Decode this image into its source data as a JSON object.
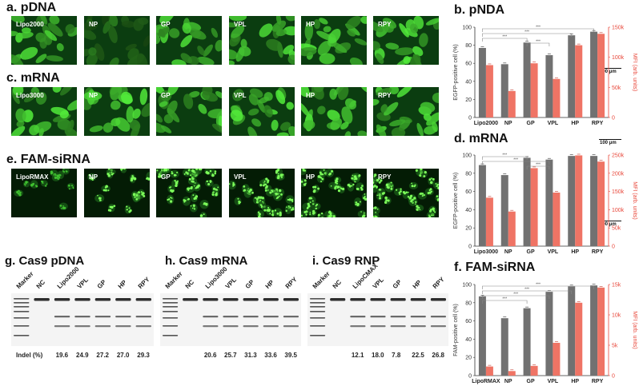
{
  "panels": {
    "a": {
      "title": "a. pDNA",
      "labels": [
        "Lipo2000",
        "NP",
        "GP",
        "VPL",
        "HP",
        "RPY"
      ]
    },
    "c": {
      "title": "c. mRNA",
      "labels": [
        "Lipo3000",
        "NP",
        "GP",
        "VPL",
        "HP",
        "RPY"
      ]
    },
    "e": {
      "title": "e. FAM-siRNA",
      "labels": [
        "LipoRMAX",
        "NP",
        "GP",
        "VPL",
        "HP",
        "RPY"
      ]
    },
    "scale_label": "100 μm"
  },
  "colors": {
    "bar_gray": "#717171",
    "bar_red": "#ef7465",
    "axis_red": "#e8473a",
    "sig": "#888888"
  },
  "chart_data": [
    {
      "type": "bar",
      "title": "b. pNDA",
      "categories": [
        "Lipo2000",
        "NP",
        "GP",
        "VPL",
        "HP",
        "RPY"
      ],
      "ylabel": "EGFP-positive cell (%)",
      "y2label": "MFI (arb. units)",
      "ylim": [
        0,
        100
      ],
      "y2lim": [
        0,
        150000
      ],
      "yticks": [
        "0",
        "20",
        "40",
        "60",
        "80",
        "100"
      ],
      "y2ticks": [
        "0",
        "50k",
        "100k",
        "150k"
      ],
      "series": [
        {
          "axis": "left",
          "values": [
            77,
            59,
            83,
            69,
            91,
            95
          ]
        },
        {
          "axis": "right",
          "values": [
            87000,
            44000,
            90000,
            64000,
            120000,
            139000
          ]
        }
      ],
      "significance": "***"
    },
    {
      "type": "bar",
      "title": "d. mRNA",
      "categories": [
        "Lipo3000",
        "NP",
        "GP",
        "VPL",
        "HP",
        "RPY"
      ],
      "ylabel": "EGFP-positive cell (%)",
      "y2label": "MFI (arb. units)",
      "ylim": [
        0,
        100
      ],
      "y2lim": [
        0,
        250000
      ],
      "yticks": [
        "0",
        "20",
        "40",
        "60",
        "80",
        "100"
      ],
      "y2ticks": [
        "0",
        "50k",
        "100k",
        "150k",
        "200k",
        "250k"
      ],
      "series": [
        {
          "axis": "left",
          "values": [
            89,
            78,
            97,
            95,
            99,
            99
          ]
        },
        {
          "axis": "right",
          "values": [
            133000,
            95000,
            214000,
            147000,
            249000,
            232000
          ]
        }
      ],
      "significance": "***"
    },
    {
      "type": "bar",
      "title": "f. FAM-siRNA",
      "categories": [
        "LipoRMAX",
        "NP",
        "GP",
        "VPL",
        "HP",
        "RPY"
      ],
      "ylabel": "FAM-positive cell (%)",
      "y2label": "MFI (arb. units)",
      "ylim": [
        0,
        100
      ],
      "y2lim": [
        0,
        15000
      ],
      "yticks": [
        "0",
        "20",
        "40",
        "60",
        "80",
        "100"
      ],
      "y2ticks": [
        "0",
        "5k",
        "10k",
        "15k"
      ],
      "series": [
        {
          "axis": "left",
          "values": [
            87,
            63,
            74,
            92,
            98,
            99
          ]
        },
        {
          "axis": "right",
          "values": [
            1500,
            750,
            1600,
            5400,
            12000,
            14500
          ]
        }
      ],
      "significance": "***"
    }
  ],
  "gels": {
    "g": {
      "title": "g. Cas9 pDNA",
      "lanes": [
        "Marker",
        "NC",
        "Lipo2000",
        "VPL",
        "GP",
        "HP",
        "RPY"
      ],
      "indel": [
        "19.6",
        "24.9",
        "27.2",
        "27.0",
        "29.3"
      ]
    },
    "h": {
      "title": "h. Cas9 mRNA",
      "lanes": [
        "Marker",
        "NC",
        "Lipo3000",
        "VPL",
        "GP",
        "HP",
        "RPY"
      ],
      "indel": [
        "20.6",
        "25.7",
        "31.3",
        "33.6",
        "39.5"
      ]
    },
    "i": {
      "title": "i. Cas9 RNP",
      "lanes": [
        "Marker",
        "NC",
        "LipoCMAX",
        "VPL",
        "GP",
        "HP",
        "RPY"
      ],
      "indel": [
        "12.1",
        "18.0",
        "7.8",
        "22.5",
        "26.8"
      ]
    },
    "indel_label": "Indel (%)"
  }
}
